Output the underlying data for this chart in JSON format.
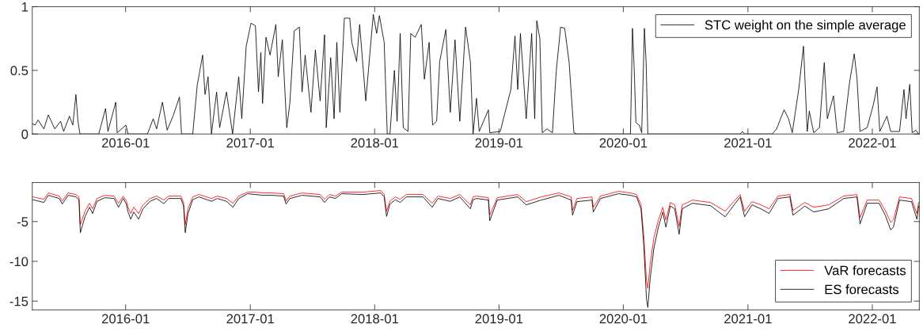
{
  "chart_data": [
    {
      "type": "line",
      "xlim": [
        "2015-04-02",
        "2022-05-19"
      ],
      "xticks": [
        "2016-01",
        "2017-01",
        "2018-01",
        "2019-01",
        "2020-01",
        "2021-01",
        "2022-01"
      ],
      "ylim": [
        0,
        1
      ],
      "yticks": [
        0,
        0.5,
        1
      ],
      "legend": "top right",
      "grid": false,
      "series": [
        {
          "name": "STC weight on the simple average",
          "color": "#000000",
          "x": [
            "2015-04-03",
            "2015-04-10",
            "2015-04-19",
            "2015-05-06",
            "2015-05-19",
            "2015-06-07",
            "2015-06-24",
            "2015-07-03",
            "2015-07-20",
            "2015-07-30",
            "2015-08-08",
            "2015-08-14",
            "2015-08-20",
            "2015-10-14",
            "2015-11-03",
            "2015-11-10",
            "2015-12-03",
            "2015-12-07",
            "2016-01-02",
            "2016-01-08",
            "2016-03-05",
            "2016-03-22",
            "2016-04-01",
            "2016-04-18",
            "2016-05-02",
            "2016-05-19",
            "2016-06-07",
            "2016-06-13",
            "2016-07-16",
            "2016-07-29",
            "2016-08-14",
            "2016-08-21",
            "2016-08-30",
            "2016-09-09",
            "2016-09-24",
            "2016-10-03",
            "2016-10-23",
            "2016-11-10",
            "2016-11-28",
            "2016-12-07",
            "2016-12-20",
            "2017-01-03",
            "2017-01-16",
            "2017-01-25",
            "2017-02-01",
            "2017-02-06",
            "2017-02-16",
            "2017-02-28",
            "2017-03-17",
            "2017-03-24",
            "2017-04-05",
            "2017-04-18",
            "2017-04-27",
            "2017-05-10",
            "2017-05-25",
            "2017-06-02",
            "2017-06-11",
            "2017-06-28",
            "2017-07-11",
            "2017-07-25",
            "2017-08-07",
            "2017-08-12",
            "2017-08-25",
            "2017-09-04",
            "2017-09-12",
            "2017-09-21",
            "2017-10-04",
            "2017-10-20",
            "2017-10-26",
            "2017-11-09",
            "2017-11-18",
            "2017-12-06",
            "2017-12-28",
            "2018-01-07",
            "2018-01-15",
            "2018-01-29",
            "2018-02-07",
            "2018-02-15",
            "2018-02-28",
            "2018-03-08",
            "2018-03-17",
            "2018-03-26",
            "2018-04-09",
            "2018-04-17",
            "2018-04-30",
            "2018-05-18",
            "2018-05-27",
            "2018-06-10",
            "2018-06-20",
            "2018-07-02",
            "2018-07-11",
            "2018-07-29",
            "2018-08-11",
            "2018-08-25",
            "2018-09-08",
            "2018-09-25",
            "2018-10-09",
            "2018-10-17",
            "2018-10-27",
            "2018-11-04",
            "2018-12-01",
            "2018-12-05",
            "2019-01-05",
            "2019-01-18",
            "2019-02-05",
            "2019-02-17",
            "2019-02-25",
            "2019-03-05",
            "2019-03-14",
            "2019-03-22",
            "2019-04-07",
            "2019-04-16",
            "2019-04-22",
            "2019-05-01",
            "2019-05-08",
            "2019-05-22",
            "2019-06-07",
            "2019-06-18",
            "2019-07-01",
            "2019-07-13",
            "2019-07-26",
            "2019-08-09",
            "2019-08-18",
            "2020-01-22",
            "2020-01-28",
            "2020-02-02",
            "2020-02-07",
            "2020-02-17",
            "2020-02-24",
            "2020-03-03",
            "2020-03-08",
            "2020-03-13",
            "2020-12-09",
            "2020-12-16",
            "2020-12-22",
            "2021-03-13",
            "2021-03-26",
            "2021-04-17",
            "2021-04-30",
            "2021-05-11",
            "2021-05-30",
            "2021-06-13",
            "2021-06-24",
            "2021-06-30",
            "2021-07-13",
            "2021-07-30",
            "2021-08-13",
            "2021-08-22",
            "2021-09-09",
            "2021-09-20",
            "2021-10-09",
            "2021-10-26",
            "2021-11-09",
            "2021-11-17",
            "2021-11-26",
            "2021-12-17",
            "2022-01-04",
            "2022-01-15",
            "2022-01-23",
            "2022-02-13",
            "2022-02-24",
            "2022-03-22",
            "2022-04-04",
            "2022-04-10",
            "2022-04-21",
            "2022-04-28",
            "2022-05-09",
            "2022-05-17"
          ],
          "values": [
            0.08,
            0.07,
            0.11,
            0.04,
            0.15,
            0.04,
            0.1,
            0.02,
            0.14,
            0.07,
            0.31,
            0.1,
            0,
            0,
            0.2,
            0.02,
            0.25,
            0.01,
            0.07,
            0,
            0,
            0.12,
            0.04,
            0.25,
            0.03,
            0.14,
            0.29,
            0,
            0,
            0.38,
            0.62,
            0.31,
            0.45,
            0,
            0.33,
            0.05,
            0.33,
            0,
            0.45,
            0.12,
            0.69,
            0.87,
            0.85,
            0.33,
            0.64,
            0.24,
            0.76,
            0.62,
            0.86,
            0.45,
            0.74,
            0.05,
            0.24,
            0.81,
            0.84,
            0.33,
            0.62,
            0.17,
            0.66,
            0.26,
            0.78,
            0.05,
            0.6,
            0.12,
            0.72,
            0.17,
            0.91,
            0.91,
            0.72,
            0.57,
            0.86,
            0.26,
            0.94,
            0.79,
            0.93,
            0.72,
            0,
            0,
            0.5,
            0.1,
            0.79,
            0.05,
            0.02,
            0.79,
            0.76,
            0.86,
            0.43,
            0.72,
            0.07,
            0.1,
            0.57,
            0.82,
            0.17,
            0.74,
            0.1,
            0.84,
            0.57,
            0,
            0.28,
            0.02,
            0.19,
            0.01,
            0.02,
            0.16,
            0.35,
            0.77,
            0.35,
            0.79,
            0.44,
            0.12,
            0.79,
            0.12,
            0.89,
            0.75,
            0.01,
            0.04,
            0.01,
            0.49,
            0.84,
            0.83,
            0.56,
            0.01,
            0,
            0,
            0.83,
            0.51,
            0.09,
            0.07,
            0.01,
            0.83,
            0.56,
            0,
            0,
            0.02,
            0,
            0,
            0.04,
            0.19,
            0.12,
            0.01,
            0.35,
            0.69,
            0.02,
            0.18,
            0.01,
            0.05,
            0.56,
            0.12,
            0.3,
            0.01,
            0.02,
            0.4,
            0.63,
            0.44,
            0.02,
            0.05,
            0.23,
            0.37,
            0.02,
            0.14,
            0.02,
            0.02,
            0.35,
            0.12,
            0.39,
            0.01,
            0.03,
            0
          ]
        }
      ]
    },
    {
      "type": "line",
      "xlim": [
        "2015-04-02",
        "2022-05-19"
      ],
      "xticks": [
        "2016-01",
        "2017-01",
        "2018-01",
        "2019-01",
        "2020-01",
        "2021-01",
        "2022-01"
      ],
      "ylim": [
        -16.1,
        -0.1
      ],
      "yticks": [
        -15,
        -10,
        -5
      ],
      "legend": "bottom right",
      "grid": false,
      "x": [
        "2015-04-03",
        "2015-05-06",
        "2015-05-19",
        "2015-06-20",
        "2015-06-29",
        "2015-07-16",
        "2015-08-08",
        "2015-08-17",
        "2015-08-21",
        "2015-09-04",
        "2015-09-17",
        "2015-09-26",
        "2015-10-09",
        "2015-11-01",
        "2015-11-28",
        "2015-12-11",
        "2015-12-25",
        "2016-01-03",
        "2016-01-08",
        "2016-01-16",
        "2016-01-25",
        "2016-02-08",
        "2016-02-21",
        "2016-03-13",
        "2016-04-01",
        "2016-04-22",
        "2016-05-06",
        "2016-06-11",
        "2016-06-19",
        "2016-06-24",
        "2016-07-02",
        "2016-07-16",
        "2016-08-03",
        "2016-09-09",
        "2016-09-26",
        "2016-10-23",
        "2016-11-11",
        "2016-11-28",
        "2016-12-24",
        "2017-01-16",
        "2017-02-08",
        "2017-03-04",
        "2017-04-09",
        "2017-04-16",
        "2017-04-27",
        "2017-06-02",
        "2017-07-25",
        "2017-08-07",
        "2017-08-21",
        "2017-09-08",
        "2017-09-26",
        "2017-11-27",
        "2018-01-19",
        "2018-01-29",
        "2018-02-05",
        "2018-02-15",
        "2018-03-03",
        "2018-03-17",
        "2018-04-04",
        "2018-05-23",
        "2018-06-19",
        "2018-07-06",
        "2018-08-11",
        "2018-09-08",
        "2018-10-09",
        "2018-10-17",
        "2018-10-27",
        "2018-12-01",
        "2018-12-05",
        "2018-12-27",
        "2019-02-25",
        "2019-03-22",
        "2019-05-05",
        "2019-06-26",
        "2019-08-01",
        "2019-08-05",
        "2019-08-18",
        "2019-10-01",
        "2019-10-05",
        "2019-10-26",
        "2019-12-18",
        "2020-01-22",
        "2020-02-09",
        "2020-02-22",
        "2020-03-01",
        "2020-03-09",
        "2020-03-13",
        "2020-03-20",
        "2020-03-31",
        "2020-04-13",
        "2020-04-26",
        "2020-05-05",
        "2020-05-18",
        "2020-05-31",
        "2020-06-13",
        "2020-06-22",
        "2020-07-22",
        "2020-09-13",
        "2020-10-26",
        "2020-12-09",
        "2020-12-22",
        "2021-01-13",
        "2021-02-08",
        "2021-03-04",
        "2021-03-30",
        "2021-05-04",
        "2021-05-13",
        "2021-06-17",
        "2021-07-13",
        "2021-08-26",
        "2021-10-09",
        "2021-11-17",
        "2021-11-26",
        "2021-12-17",
        "2022-01-21",
        "2022-02-08",
        "2022-02-24",
        "2022-03-04",
        "2022-03-22",
        "2022-04-26",
        "2022-05-12",
        "2022-05-17"
      ],
      "series": [
        {
          "name": "VaR forecasts",
          "color": "#ff0000",
          "values": [
            -1.9,
            -2.2,
            -1.4,
            -1.8,
            -2.4,
            -1.4,
            -1.6,
            -1.9,
            -5.4,
            -3.7,
            -2.7,
            -3.4,
            -2.1,
            -1.7,
            -1.8,
            -2.7,
            -1.8,
            -2.4,
            -3.2,
            -4.0,
            -3.2,
            -4.0,
            -2.9,
            -2.1,
            -1.8,
            -2.3,
            -1.8,
            -1.8,
            -2.6,
            -5.4,
            -3.4,
            -1.9,
            -1.6,
            -2.1,
            -1.8,
            -2.1,
            -2.7,
            -1.8,
            -1.3,
            -1.3,
            -1.4,
            -1.4,
            -1.5,
            -2.4,
            -1.8,
            -1.4,
            -1.6,
            -2.2,
            -1.6,
            -1.8,
            -1.3,
            -1.3,
            -1.1,
            -1.6,
            -3.7,
            -2.4,
            -1.9,
            -2.2,
            -1.6,
            -1.6,
            -2.7,
            -1.8,
            -2.1,
            -1.6,
            -2.9,
            -1.9,
            -1.8,
            -2.0,
            -4.2,
            -2.0,
            -1.6,
            -2.5,
            -1.9,
            -1.4,
            -1.9,
            -3.6,
            -2.1,
            -1.9,
            -3.2,
            -1.8,
            -1.2,
            -1.4,
            -1.6,
            -2.9,
            -6.7,
            -12.4,
            -13.4,
            -10.3,
            -7.0,
            -4.8,
            -3.2,
            -4.8,
            -2.6,
            -2.9,
            -5.6,
            -2.9,
            -2.3,
            -2.6,
            -3.7,
            -1.6,
            -3.7,
            -2.5,
            -2.9,
            -3.4,
            -1.8,
            -1.6,
            -3.6,
            -2.6,
            -3.2,
            -2.9,
            -1.8,
            -1.6,
            -4.5,
            -2.3,
            -2.3,
            -3.6,
            -5.1,
            -4.8,
            -1.9,
            -2.1,
            -4.0,
            -2.6
          ]
        },
        {
          "name": "ES forecasts",
          "color": "#000000",
          "values": [
            -2.25,
            -2.6,
            -1.7,
            -2.1,
            -2.8,
            -1.7,
            -1.9,
            -2.25,
            -6.4,
            -4.35,
            -3.2,
            -4.0,
            -2.45,
            -2.0,
            -2.1,
            -3.2,
            -2.1,
            -2.8,
            -3.8,
            -4.7,
            -3.8,
            -4.7,
            -3.4,
            -2.45,
            -2.1,
            -2.75,
            -2.1,
            -2.1,
            -3.0,
            -6.4,
            -4.0,
            -2.25,
            -1.9,
            -2.45,
            -2.1,
            -2.45,
            -3.2,
            -2.1,
            -1.5,
            -1.6,
            -1.7,
            -1.7,
            -1.8,
            -2.8,
            -2.1,
            -1.7,
            -1.9,
            -2.6,
            -1.9,
            -2.1,
            -1.5,
            -1.6,
            -1.4,
            -1.9,
            -4.35,
            -2.8,
            -2.25,
            -2.6,
            -1.9,
            -1.9,
            -3.2,
            -2.1,
            -2.45,
            -1.9,
            -3.4,
            -2.25,
            -2.1,
            -2.3,
            -4.9,
            -2.3,
            -1.9,
            -2.9,
            -2.3,
            -1.7,
            -2.3,
            -4.2,
            -2.5,
            -2.3,
            -3.8,
            -2.1,
            -1.5,
            -1.7,
            -1.9,
            -3.4,
            -7.9,
            -14.7,
            -15.8,
            -12.1,
            -8.3,
            -5.7,
            -3.8,
            -5.7,
            -3.05,
            -3.4,
            -6.6,
            -3.4,
            -2.7,
            -3.0,
            -4.4,
            -1.9,
            -4.4,
            -2.9,
            -3.4,
            -3.98,
            -2.1,
            -1.9,
            -4.2,
            -3.05,
            -3.8,
            -3.4,
            -2.1,
            -1.9,
            -5.3,
            -2.7,
            -2.7,
            -4.2,
            -6.05,
            -5.7,
            -2.3,
            -2.5,
            -4.7,
            -3.05
          ]
        }
      ]
    }
  ]
}
